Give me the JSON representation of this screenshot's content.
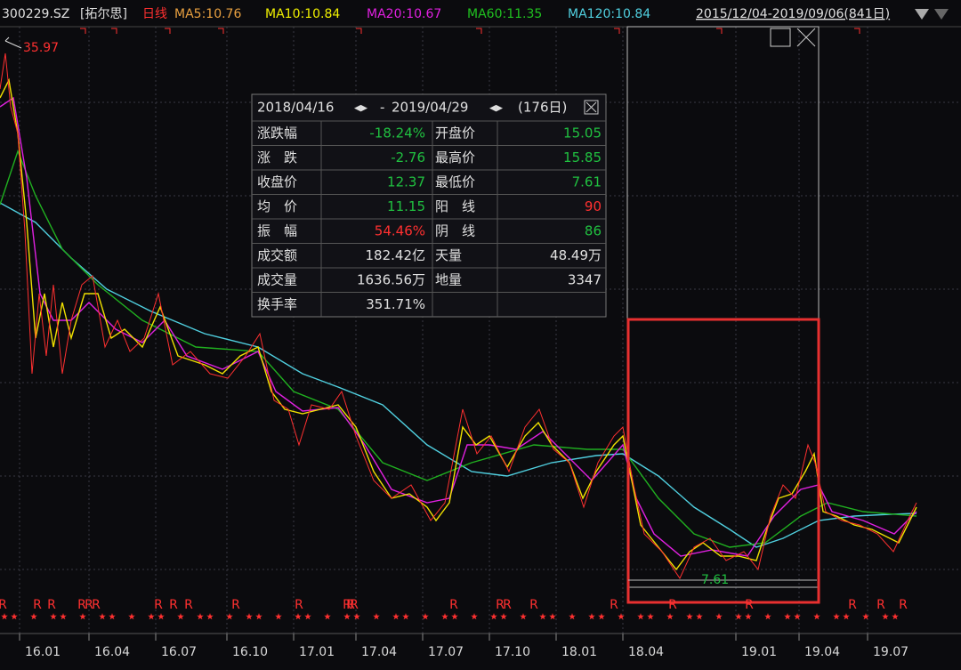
{
  "header": {
    "code": "300229.SZ",
    "name": "[拓尔思]",
    "period": "日线",
    "ma": [
      "MA5:10.76",
      "MA10:10.84",
      "MA20:10.67",
      "MA60:11.35",
      "MA120:10.84"
    ],
    "range": "2015/12/04-2019/09/06(841日)"
  },
  "chart": {
    "max_label": "35.97",
    "min_label": "7.61",
    "marker": "R",
    "x_labels": [
      "16.01",
      "16.04",
      "16.07",
      "16.10",
      "17.01",
      "17.04",
      "17.07",
      "17.10",
      "18.01",
      "18.04",
      "19.01",
      "19.04",
      "19.07"
    ]
  },
  "stats": {
    "start": "2018/04/16",
    "end": "2019/04/29",
    "days": "(176日)",
    "rows": [
      [
        "涨跌幅",
        "-18.24%",
        "开盘价",
        "15.05"
      ],
      [
        "涨　跌",
        "-2.76",
        "最高价",
        "15.85"
      ],
      [
        "收盘价",
        "12.37",
        "最低价",
        "7.61"
      ],
      [
        "均　价",
        "11.15",
        "阳　线",
        "90"
      ],
      [
        "振　幅",
        "54.46%",
        "阴　线",
        "86"
      ],
      [
        "成交额",
        "182.42亿",
        "天量",
        "48.49万"
      ],
      [
        "成交量",
        "1636.56万",
        "地量",
        "3347"
      ],
      [
        "换手率",
        "351.71%"
      ]
    ]
  }
}
